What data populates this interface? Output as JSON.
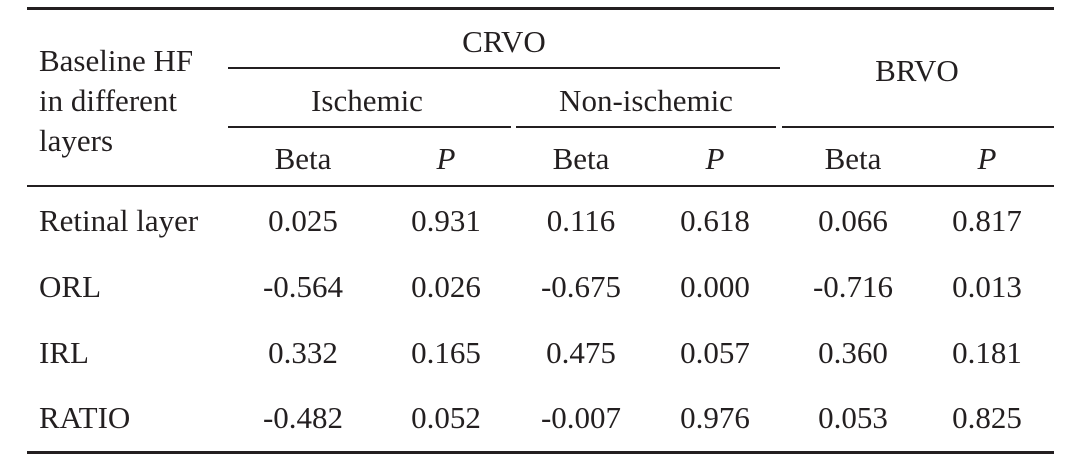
{
  "table": {
    "stub_header": [
      "Baseline HF",
      "in different",
      "layers"
    ],
    "group_crvo": "CRVO",
    "group_brvo": "BRVO",
    "sub_ischemic": "Ischemic",
    "sub_nonischemic": "Non-ischemic",
    "col_beta": "Beta",
    "col_p": "P",
    "rows": [
      {
        "label": "Retinal layer",
        "values": [
          "0.025",
          "0.931",
          "0.116",
          "0.618",
          "0.066",
          "0.817"
        ]
      },
      {
        "label": "ORL",
        "values": [
          "-0.564",
          "0.026",
          "-0.675",
          "0.000",
          "-0.716",
          "0.013"
        ]
      },
      {
        "label": "IRL",
        "values": [
          "0.332",
          "0.165",
          "0.475",
          "0.057",
          "0.360",
          "0.181"
        ]
      },
      {
        "label": "RATIO",
        "values": [
          "-0.482",
          "0.052",
          "-0.007",
          "0.976",
          "0.053",
          "0.825"
        ]
      }
    ]
  }
}
